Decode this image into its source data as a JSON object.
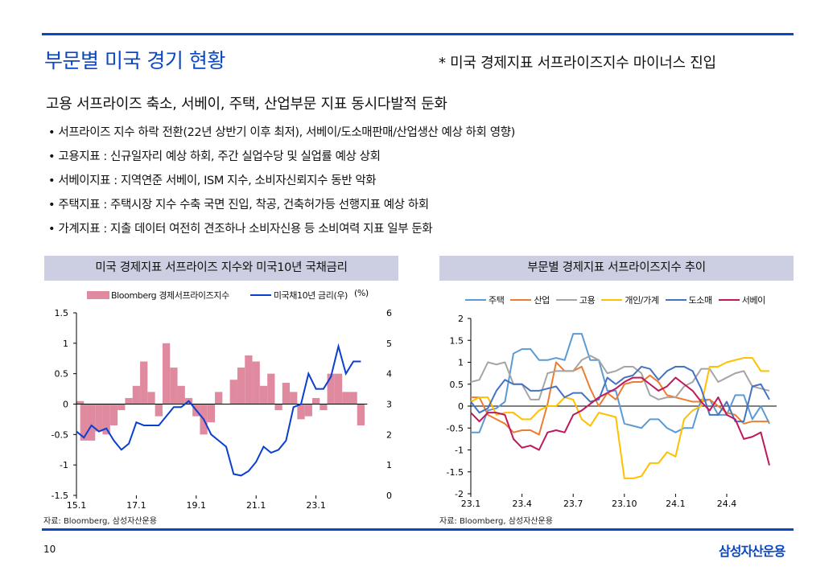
{
  "header": {
    "title": "부문별 미국 경기 현황",
    "note": "* 미국 경제지표 서프라이즈지수 마이너스 진입",
    "subtitle": "고용 서프라이즈 축소, 서베이, 주택, 산업부문 지표 동시다발적 둔화"
  },
  "bullets": [
    "서프라이즈 지수 하락 전환(22년 상반기 이후 최저), 서베이/도소매판매/산업생산  예상 하회 영향)",
    "고용지표 : 신규일자리 예상 하회, 주간 실업수당 및 실업률 예상 상회",
    "서베이지표 : 지역연준 서베이, ISM 지수, 소비자신뢰지수  동반 악화",
    "주택지표 : 주택시장 지수 수축 국면 진입, 착공, 건축허가등 선행지표 예상 하회",
    "가계지표 : 지출 데이터 여전히 견조하나 소비자신용 등 소비여력 지표 일부 둔화"
  ],
  "footer": {
    "page": "10",
    "logo": "삼성자산운용"
  },
  "colors": {
    "accent": "#0a47c2",
    "header_band": "#cbcfe1"
  },
  "chart_data": [
    {
      "type": "bar+line",
      "title": "미국 경제지표 서프라이즈 지수와 미국10년 국채금리",
      "source": "자료: Bloomberg, 삼성자산운용",
      "unit_right": "(%)",
      "x_ticks": [
        "15.1",
        "17.1",
        "19.1",
        "21.1",
        "23.1"
      ],
      "x_tick_values": [
        2015,
        2017,
        2019,
        2021,
        2023
      ],
      "xlim": [
        2015,
        2024.5
      ],
      "y_left_ticks": [
        "1.5",
        "1",
        "0.5",
        "0",
        "-0.5",
        "-1",
        "-1.5"
      ],
      "ylim_left": [
        -1.5,
        1.5
      ],
      "y_right_ticks": [
        "6",
        "5",
        "4",
        "3",
        "2",
        "1",
        "0"
      ],
      "ylim_right": [
        0,
        6
      ],
      "x": [
        2015.0,
        2015.25,
        2015.5,
        2015.75,
        2016.0,
        2016.25,
        2016.5,
        2016.75,
        2017.0,
        2017.25,
        2017.5,
        2017.75,
        2018.0,
        2018.25,
        2018.5,
        2018.75,
        2019.0,
        2019.25,
        2019.5,
        2019.75,
        2020.0,
        2020.25,
        2020.5,
        2020.75,
        2021.0,
        2021.25,
        2021.5,
        2021.75,
        2022.0,
        2022.25,
        2022.5,
        2022.75,
        2023.0,
        2023.25,
        2023.5,
        2023.75,
        2024.0,
        2024.25,
        2024.5
      ],
      "series": [
        {
          "name": "Bloomberg 경제서프라이즈지수",
          "axis": "left",
          "kind": "bar",
          "color": "#e08aa0",
          "values": [
            0.05,
            -0.6,
            -0.6,
            -0.45,
            -0.5,
            -0.35,
            -0.1,
            0.1,
            0.3,
            0.7,
            0.2,
            -0.2,
            1.0,
            0.6,
            0.3,
            0.1,
            -0.2,
            -0.5,
            -0.3,
            0.2,
            0.0,
            0.4,
            0.6,
            0.8,
            0.7,
            0.3,
            0.5,
            -0.1,
            0.35,
            0.2,
            -0.25,
            -0.2,
            0.1,
            -0.1,
            0.5,
            0.5,
            0.2,
            0.2,
            -0.35
          ]
        },
        {
          "name": "미국채10년 금리(우)",
          "axis": "right",
          "kind": "line",
          "color": "#0a3fd0",
          "values": [
            2.1,
            1.9,
            2.3,
            2.1,
            2.2,
            1.8,
            1.5,
            1.7,
            2.4,
            2.3,
            2.3,
            2.3,
            2.6,
            2.9,
            2.9,
            3.1,
            2.8,
            2.5,
            2.0,
            1.8,
            1.6,
            0.7,
            0.65,
            0.8,
            1.1,
            1.6,
            1.4,
            1.5,
            1.8,
            2.9,
            3.0,
            4.0,
            3.5,
            3.5,
            3.9,
            4.9,
            4.0,
            4.4,
            4.4
          ]
        }
      ]
    },
    {
      "type": "line",
      "title": "부문별 경제지표 서프라이즈지수 추이",
      "source": "자료: Bloomberg, 삼성자산운용",
      "x_ticks": [
        "23.1",
        "23.4",
        "23.7",
        "23.10",
        "24.1",
        "24.4"
      ],
      "x_tick_values": [
        0,
        3,
        6,
        9,
        12,
        15
      ],
      "xlabel_note": "months since 2023-01",
      "xlim": [
        0,
        18
      ],
      "y_ticks": [
        "2",
        "1.5",
        "1",
        "0.5",
        "0",
        "-0.5",
        "-1",
        "-1.5",
        "-2"
      ],
      "ylim": [
        -2,
        2
      ],
      "x": [
        0,
        0.5,
        1,
        1.5,
        2,
        2.5,
        3,
        3.5,
        4,
        4.5,
        5,
        5.5,
        6,
        6.5,
        7,
        7.5,
        8,
        8.5,
        9,
        9.5,
        10,
        10.5,
        11,
        11.5,
        12,
        12.5,
        13,
        13.5,
        14,
        14.5,
        15,
        15.5,
        16,
        16.5,
        17,
        17.5
      ],
      "series": [
        {
          "name": "주택",
          "color": "#5b9bd5",
          "values": [
            -0.6,
            -0.6,
            -0.1,
            -0.05,
            0.1,
            1.2,
            1.3,
            1.3,
            1.05,
            1.05,
            1.1,
            1.05,
            1.65,
            1.65,
            1.05,
            1.05,
            0.35,
            0.35,
            -0.4,
            -0.45,
            -0.5,
            -0.3,
            -0.3,
            -0.5,
            -0.6,
            -0.5,
            -0.5,
            0.15,
            0.15,
            -0.2,
            -0.2,
            0.25,
            0.25,
            -0.3,
            0,
            -0.4
          ]
        },
        {
          "name": "산업",
          "color": "#ed7d31",
          "values": [
            0.2,
            0.2,
            -0.2,
            -0.3,
            -0.4,
            -0.6,
            -0.55,
            -0.55,
            -0.65,
            0.05,
            1.0,
            0.8,
            0.8,
            0.9,
            0.4,
            0.0,
            0.3,
            0.15,
            0.5,
            0.55,
            0.55,
            0.7,
            0.55,
            0.25,
            0.2,
            0.15,
            0.1,
            0.1,
            0.15,
            0,
            -0.15,
            -0.2,
            -0.4,
            -0.35,
            -0.35,
            -0.35
          ]
        },
        {
          "name": "고용",
          "color": "#a5a5a5",
          "values": [
            0.55,
            0.6,
            1.0,
            0.95,
            1.0,
            0.5,
            0.5,
            0.15,
            0.15,
            0.75,
            0.8,
            0.8,
            0.8,
            1.05,
            1.15,
            1.05,
            0.75,
            0.8,
            0.9,
            0.9,
            0.75,
            0.25,
            0.15,
            0.2,
            0.2,
            0.45,
            0.55,
            0.85,
            0.85,
            0.55,
            0.65,
            0.75,
            0.8,
            0.45,
            0.4,
            0.35
          ]
        },
        {
          "name": "개인/가계",
          "color": "#ffc000",
          "values": [
            0.1,
            0.2,
            0.2,
            -0.2,
            -0.15,
            -0.15,
            -0.3,
            -0.3,
            -0.1,
            0,
            0,
            0.2,
            0.15,
            -0.3,
            -0.45,
            -0.15,
            -0.2,
            -0.25,
            -1.65,
            -1.65,
            -1.6,
            -1.3,
            -1.3,
            -1.05,
            -1.15,
            -0.3,
            -0.1,
            0,
            0.9,
            0.9,
            1.0,
            1.05,
            1.1,
            1.1,
            0.8,
            0.8
          ]
        },
        {
          "name": "도소매",
          "color": "#4472c4",
          "values": [
            0.1,
            -0.15,
            -0.05,
            0.35,
            0.6,
            0.5,
            0.5,
            0.35,
            0.35,
            0.4,
            0.45,
            0.2,
            0.3,
            0.3,
            0.1,
            0.15,
            0.65,
            0.5,
            0.65,
            0.7,
            0.9,
            0.85,
            0.6,
            0.8,
            0.9,
            0.9,
            0.8,
            0.4,
            -0.2,
            -0.2,
            0.1,
            -0.35,
            -0.35,
            0.45,
            0.5,
            0.15
          ]
        },
        {
          "name": "서베이",
          "color": "#c0185c",
          "values": [
            -0.15,
            -0.35,
            -0.15,
            -0.15,
            -0.2,
            -0.75,
            -0.95,
            -0.9,
            -1.0,
            -0.6,
            -0.55,
            -0.6,
            -0.2,
            -0.1,
            0.05,
            0.2,
            0.3,
            0.4,
            0.55,
            0.65,
            0.65,
            0.5,
            0.35,
            0.45,
            0.65,
            0.5,
            0.35,
            0.1,
            -0.1,
            0.2,
            -0.2,
            -0.3,
            -0.75,
            -0.7,
            -0.6,
            -1.35
          ]
        }
      ]
    }
  ]
}
